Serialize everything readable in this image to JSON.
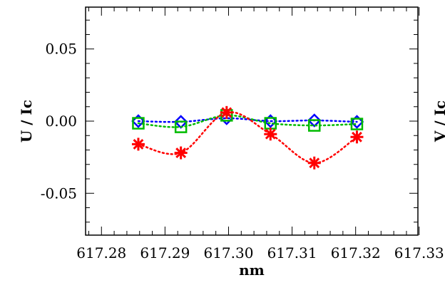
{
  "chart_data": [
    {
      "type": "line",
      "xlabel": "nm",
      "ylabel": "U / Ic",
      "xlim": [
        617.2775,
        617.3298
      ],
      "ylim": [
        -0.079,
        0.079
      ],
      "x_ticks": [
        617.28,
        617.29,
        617.3,
        617.31,
        617.32,
        617.33
      ],
      "x_tick_labels": [
        "617.28",
        "617.29",
        "617.30",
        "617.31",
        "617.32",
        "617.33"
      ],
      "y_ticks": [
        0.05,
        0.0,
        -0.05
      ],
      "y_tick_labels": [
        "0.05",
        "0.00",
        "-0.05"
      ],
      "x": [
        617.2858,
        617.2925,
        617.2997,
        617.3066,
        617.3135,
        617.3202
      ],
      "grid": false,
      "legend": "none",
      "series": [
        {
          "marker": "diamond",
          "line": "dotted",
          "color": "#0000ff",
          "values": [
            0.0,
            -0.0005,
            0.002,
            0.0,
            0.0005,
            -0.0005
          ]
        },
        {
          "marker": "square",
          "line": "dotted",
          "color": "#00bb00",
          "values": [
            -0.0015,
            -0.004,
            0.004,
            -0.0015,
            -0.003,
            -0.002
          ]
        },
        {
          "marker": "asterisk",
          "line": "dotted",
          "color": "#ff0000",
          "values": [
            -0.016,
            -0.022,
            0.006,
            -0.009,
            -0.029,
            -0.011
          ]
        }
      ]
    },
    {
      "type": "line",
      "ylabel": "V / Ic",
      "partial": true
    }
  ]
}
